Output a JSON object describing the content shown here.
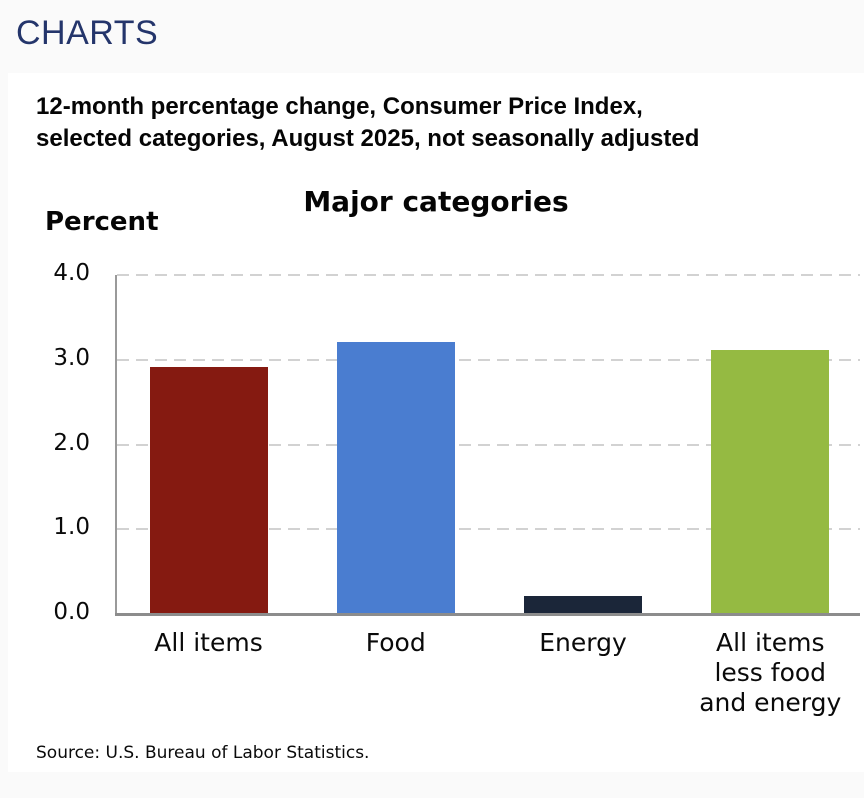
{
  "header": {
    "title": "CHARTS",
    "title_color": "#24356b"
  },
  "subtitle": {
    "line1": "12-month percentage change, Consumer Price Index,",
    "line2": "selected categories, August 2025, not seasonally adjusted"
  },
  "chart_data": {
    "type": "bar",
    "title": "Major categories",
    "ylabel": "Percent",
    "categories": [
      "All items",
      "Food",
      "Energy",
      "All items\nless food\nand energy"
    ],
    "values": [
      2.9,
      3.2,
      0.2,
      3.1
    ],
    "bar_colors": [
      "#851a11",
      "#4a7dd0",
      "#1b2639",
      "#95ba42"
    ],
    "ylim": [
      0,
      4
    ],
    "ytick_labels": [
      "0.0",
      "1.0",
      "2.0",
      "3.0",
      "4.0"
    ],
    "ytick_values": [
      0,
      1,
      2,
      3,
      4
    ],
    "grid": "horizontal-dashed",
    "grid_color": "#d2d2d2",
    "axis_color": "#8c8c8c",
    "legend": "none"
  },
  "footer": {
    "source": "Source: U.S. Bureau of Labor Statistics."
  }
}
